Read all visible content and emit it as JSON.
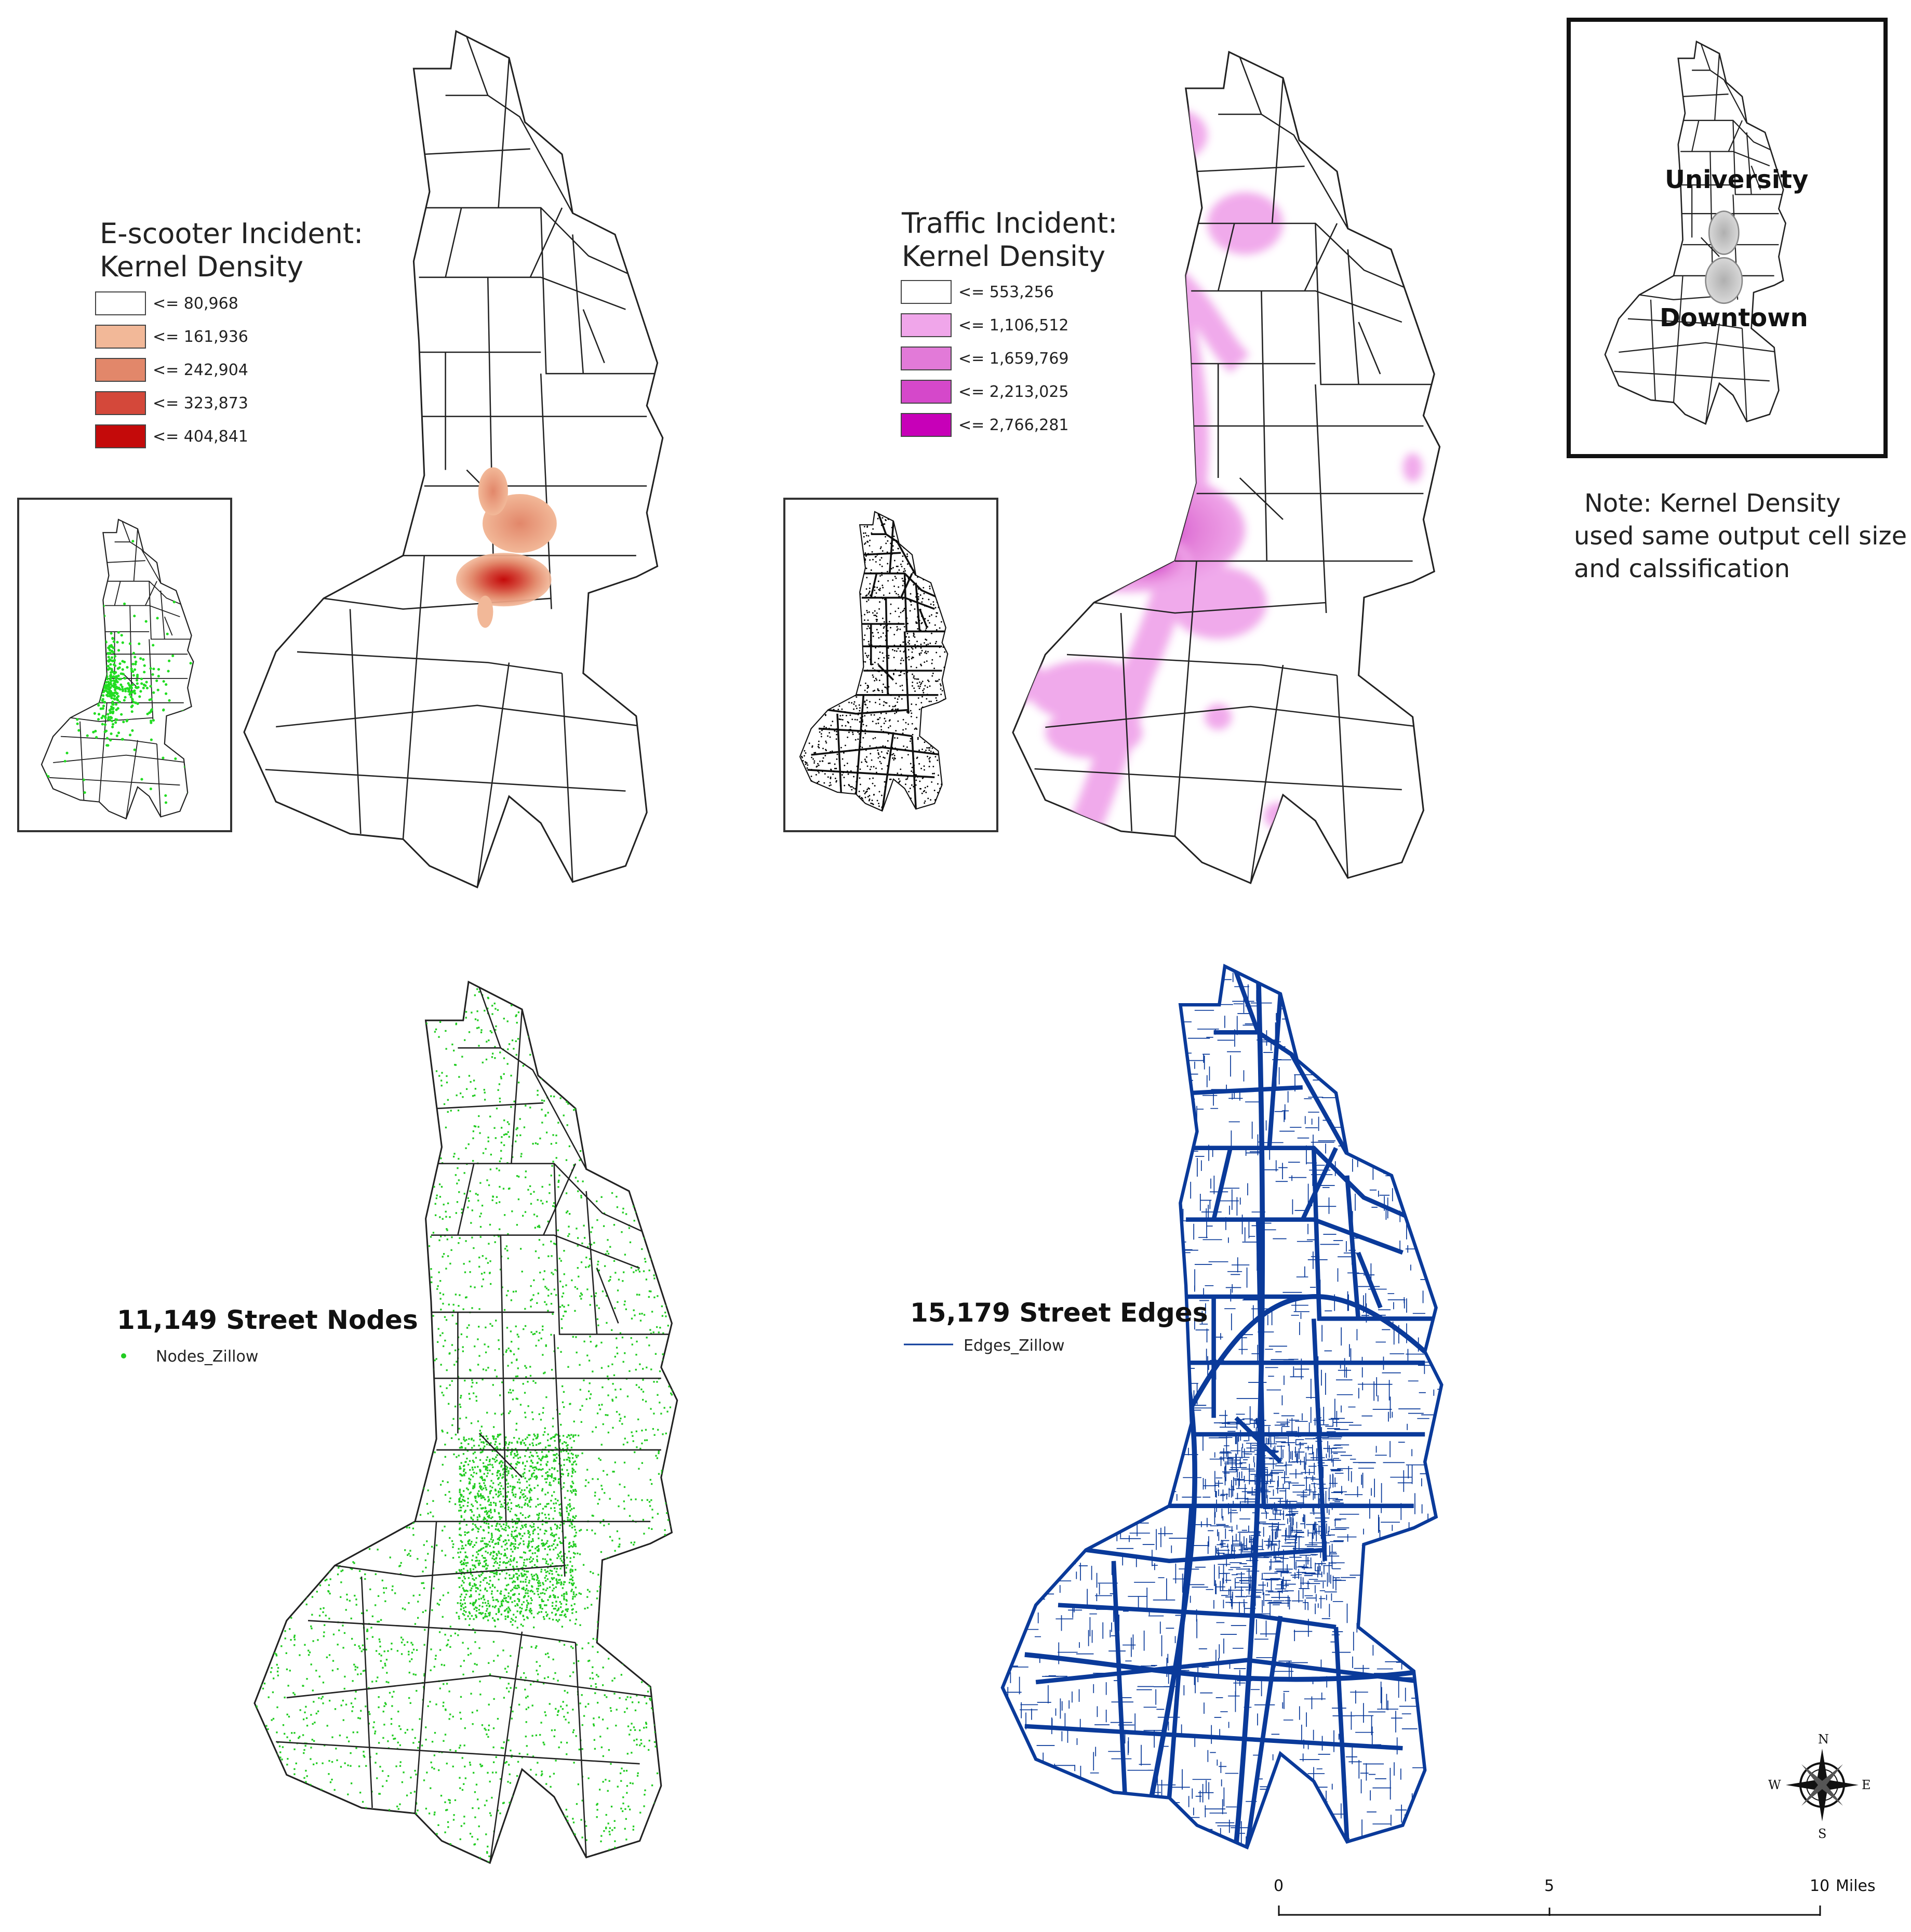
{
  "escooter": {
    "title_line1": "E-scooter Incident:",
    "title_line2": "Kernel Density",
    "legend": [
      {
        "label": "<= 80,968",
        "color": "#ffffff"
      },
      {
        "label": "<= 161,936",
        "color": "#f2b898"
      },
      {
        "label": "<=  242,904",
        "color": "#e2876a"
      },
      {
        "label": "<= 323,873",
        "color": "#d4483a"
      },
      {
        "label": "<= 404,841",
        "color": "#c40a0a"
      }
    ]
  },
  "traffic": {
    "title_line1": "Traffic Incident:",
    "title_line2": "Kernel Density",
    "legend": [
      {
        "label": "<= 553,256",
        "color": "#ffffff"
      },
      {
        "label": "<= 1,106,512",
        "color": "#f0a6ea"
      },
      {
        "label": "<= 1,659,769",
        "color": "#e27ad8"
      },
      {
        "label": "<= 2,213,025",
        "color": "#d548ca"
      },
      {
        "label": "<= 2,766,281",
        "color": "#c700b8"
      }
    ]
  },
  "inset": {
    "university_label": "University",
    "downtown_label": "Downtown"
  },
  "note": {
    "line1": "Note: Kernel Density",
    "line2": "used same output cell size",
    "line3": "and calssification"
  },
  "nodes": {
    "title": "11,149 Street Nodes",
    "legend_label": "Nodes_Zillow",
    "color": "#22cc22"
  },
  "edges": {
    "title": "15,179 Street Edges",
    "legend_label": "Edges_Zillow",
    "color": "#0a3a9a"
  },
  "compass": {
    "n": "N",
    "s": "S",
    "e": "E",
    "w": "W"
  },
  "scale": {
    "tick0": "0",
    "tick5": "5",
    "tick10": "10",
    "units": "Miles"
  }
}
